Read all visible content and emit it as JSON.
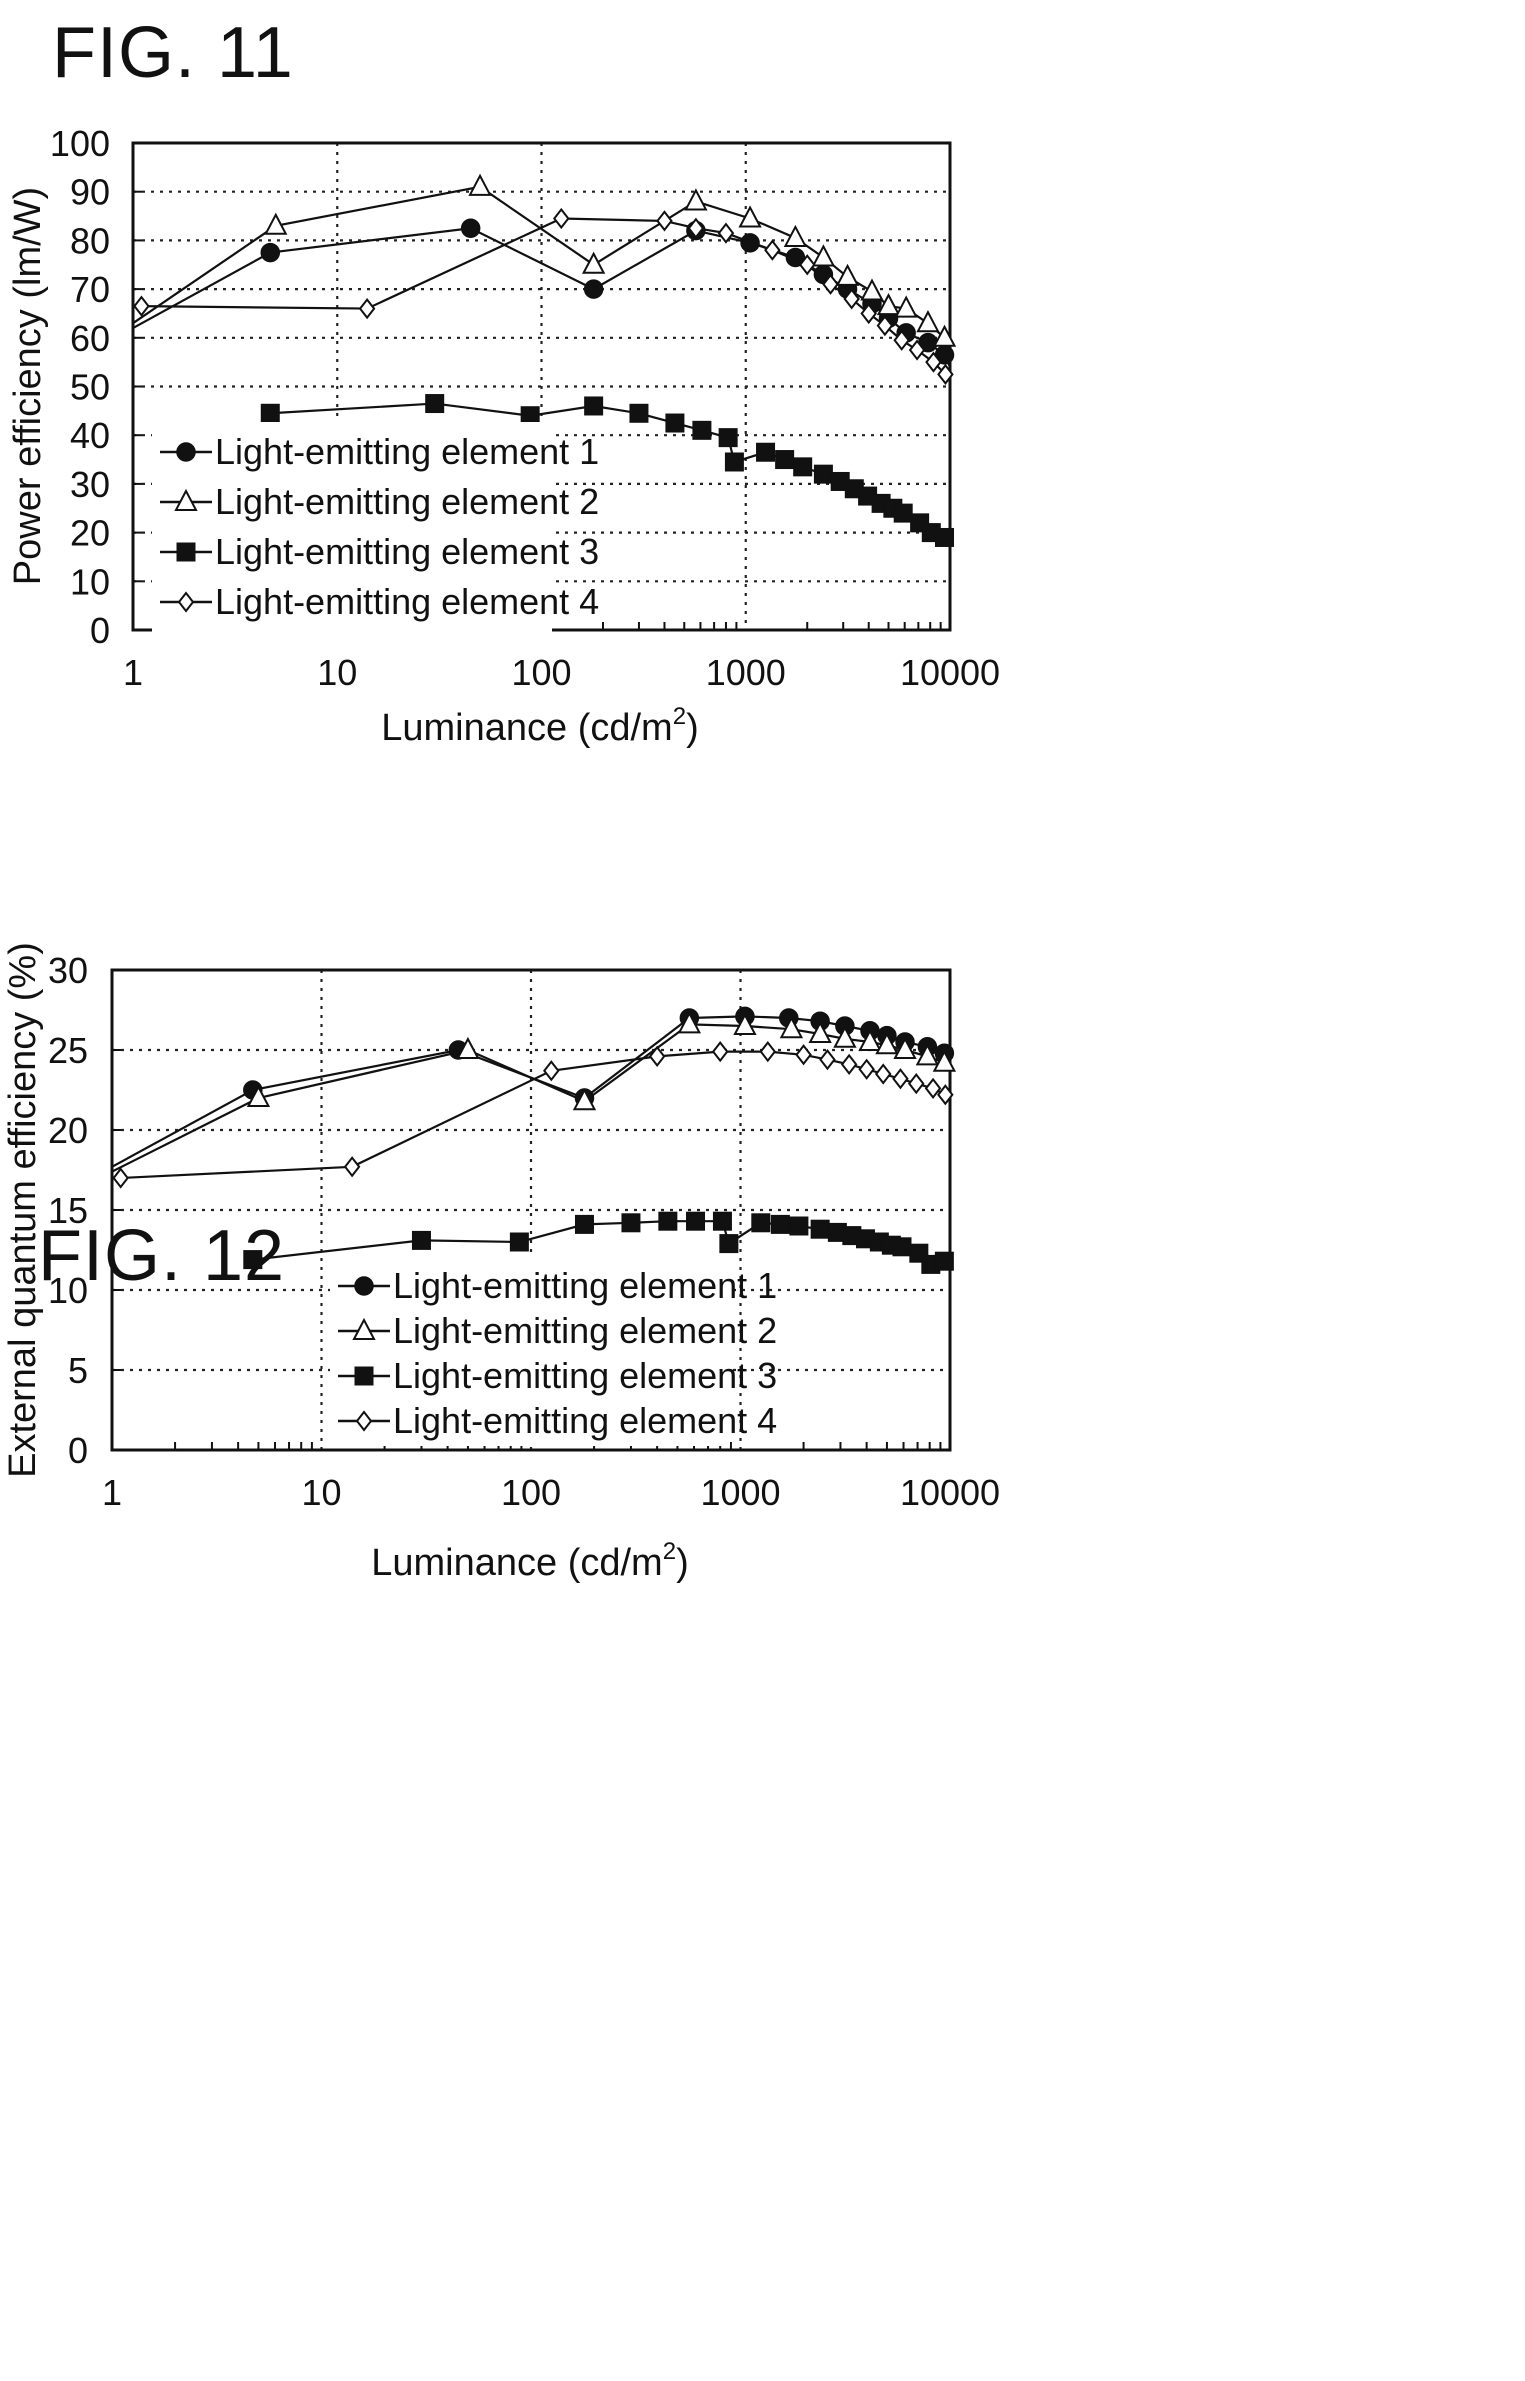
{
  "figures": [
    {
      "id": "fig11",
      "title": "FIG. 11",
      "chart_data": {
        "type": "line",
        "x_scale": "log",
        "xlim": [
          1,
          10000
        ],
        "ylim": [
          0,
          100
        ],
        "x_ticks": [
          1,
          10,
          100,
          1000,
          10000
        ],
        "x_tick_labels": [
          "1",
          "10",
          "100",
          "1000",
          "10000"
        ],
        "y_ticks": [
          0,
          10,
          20,
          30,
          40,
          50,
          60,
          70,
          80,
          90,
          100
        ],
        "y_tick_labels": [
          "0",
          "10",
          "20",
          "30",
          "40",
          "50",
          "60",
          "70",
          "80",
          "90",
          "100"
        ],
        "xlabel": "Luminance (cd/m",
        "xlabel_sup": "2",
        "xlabel_end": ")",
        "ylabel": "Power efficiency (lm/W)",
        "grid": true,
        "legend_position": "bottom-left",
        "series": [
          {
            "name": "Light-emitting element 1",
            "marker": "circle",
            "points": [
              [
                1,
                62
              ],
              [
                4.7,
                77.5
              ],
              [
                45,
                82.5
              ],
              [
                180,
                70
              ],
              [
                570,
                82
              ],
              [
                1050,
                79.5
              ],
              [
                1750,
                76.5
              ],
              [
                2400,
                73
              ],
              [
                3150,
                70
              ],
              [
                4150,
                67
              ],
              [
                5000,
                64
              ],
              [
                6100,
                61
              ],
              [
                7800,
                59
              ],
              [
                9400,
                56.5
              ],
              [
                10000,
                54
              ]
            ]
          },
          {
            "name": "Light-emitting element 2",
            "marker": "triangle",
            "points": [
              [
                1,
                63
              ],
              [
                5,
                83
              ],
              [
                50,
                91
              ],
              [
                180,
                75
              ],
              [
                570,
                88
              ],
              [
                1050,
                84.5
              ],
              [
                1750,
                80.5
              ],
              [
                2400,
                76.5
              ],
              [
                3150,
                72.5
              ],
              [
                4150,
                69.5
              ],
              [
                5000,
                66.5
              ],
              [
                6100,
                66
              ],
              [
                7800,
                63
              ],
              [
                9400,
                60
              ],
              [
                10000,
                55.5
              ]
            ]
          },
          {
            "name": "Light-emitting element 3",
            "marker": "square",
            "points": [
              [
                4.7,
                44.5
              ],
              [
                30,
                46.5
              ],
              [
                88,
                44
              ],
              [
                180,
                46
              ],
              [
                300,
                44.5
              ],
              [
                450,
                42.5
              ],
              [
                610,
                41
              ],
              [
                820,
                39.5
              ],
              [
                880,
                34.5
              ],
              [
                1250,
                36.5
              ],
              [
                1550,
                35
              ],
              [
                1900,
                33.5
              ],
              [
                2400,
                32
              ],
              [
                2900,
                30.5
              ],
              [
                3400,
                29
              ],
              [
                3950,
                27.5
              ],
              [
                4600,
                26
              ],
              [
                5250,
                25
              ],
              [
                5900,
                24
              ],
              [
                7100,
                22
              ],
              [
                8100,
                20
              ],
              [
                9400,
                19
              ],
              [
                10000,
                18
              ]
            ]
          },
          {
            "name": "Light-emitting element 4",
            "marker": "diamond",
            "points": [
              [
                1.1,
                66.5
              ],
              [
                14,
                66
              ],
              [
                125,
                84.5
              ],
              [
                400,
                84
              ],
              [
                570,
                82.5
              ],
              [
                800,
                81.5
              ],
              [
                1350,
                78
              ],
              [
                2000,
                75
              ],
              [
                2600,
                71
              ],
              [
                3300,
                68
              ],
              [
                4000,
                65
              ],
              [
                4800,
                62.5
              ],
              [
                5800,
                59.5
              ],
              [
                6900,
                57.5
              ],
              [
                8300,
                55
              ],
              [
                9500,
                52.5
              ],
              [
                10000,
                52
              ]
            ]
          }
        ]
      }
    },
    {
      "id": "fig12",
      "title": "FIG. 12",
      "chart_data": {
        "type": "line",
        "x_scale": "log",
        "xlim": [
          1,
          10000
        ],
        "ylim": [
          0,
          30
        ],
        "x_ticks": [
          1,
          10,
          100,
          1000,
          10000
        ],
        "x_tick_labels": [
          "1",
          "10",
          "100",
          "1000",
          "10000"
        ],
        "y_ticks": [
          0,
          5,
          10,
          15,
          20,
          25,
          30
        ],
        "y_tick_labels": [
          "0",
          "5",
          "10",
          "15",
          "20",
          "25",
          "30"
        ],
        "xlabel": "Luminance (cd/m",
        "xlabel_sup": "2",
        "xlabel_end": ")",
        "ylabel": "External quantum efficiency (%)",
        "grid": true,
        "legend_position": "bottom-center",
        "series": [
          {
            "name": "Light-emitting element 1",
            "marker": "circle",
            "points": [
              [
                1,
                17.7
              ],
              [
                4.7,
                22.5
              ],
              [
                45,
                25
              ],
              [
                180,
                22
              ],
              [
                570,
                27
              ],
              [
                1050,
                27.1
              ],
              [
                1700,
                27
              ],
              [
                2400,
                26.8
              ],
              [
                3150,
                26.5
              ],
              [
                4150,
                26.2
              ],
              [
                5000,
                25.9
              ],
              [
                6100,
                25.5
              ],
              [
                7800,
                25.2
              ],
              [
                9400,
                24.8
              ],
              [
                10000,
                24.5
              ]
            ]
          },
          {
            "name": "Light-emitting element 2",
            "marker": "triangle",
            "points": [
              [
                1,
                17.4
              ],
              [
                5,
                22
              ],
              [
                50,
                25
              ],
              [
                180,
                21.8
              ],
              [
                570,
                26.6
              ],
              [
                1050,
                26.5
              ],
              [
                1750,
                26.3
              ],
              [
                2400,
                26
              ],
              [
                3150,
                25.7
              ],
              [
                4150,
                25.5
              ],
              [
                5000,
                25.3
              ],
              [
                6100,
                25
              ],
              [
                7800,
                24.6
              ],
              [
                9400,
                24.2
              ],
              [
                10000,
                24
              ]
            ]
          },
          {
            "name": "Light-emitting element 3",
            "marker": "square",
            "points": [
              [
                4.7,
                11.9
              ],
              [
                30,
                13.1
              ],
              [
                88,
                13
              ],
              [
                180,
                14.1
              ],
              [
                300,
                14.2
              ],
              [
                450,
                14.3
              ],
              [
                610,
                14.3
              ],
              [
                820,
                14.3
              ],
              [
                880,
                12.9
              ],
              [
                1250,
                14.2
              ],
              [
                1550,
                14.1
              ],
              [
                1900,
                14
              ],
              [
                2400,
                13.8
              ],
              [
                2900,
                13.6
              ],
              [
                3400,
                13.4
              ],
              [
                3950,
                13.2
              ],
              [
                4600,
                13
              ],
              [
                5250,
                12.8
              ],
              [
                5900,
                12.7
              ],
              [
                7100,
                12.3
              ],
              [
                8100,
                11.6
              ],
              [
                9400,
                11.8
              ],
              [
                10000,
                11.6
              ]
            ]
          },
          {
            "name": "Light-emitting element 4",
            "marker": "diamond",
            "points": [
              [
                1.1,
                17
              ],
              [
                14,
                17.7
              ],
              [
                125,
                23.7
              ],
              [
                400,
                24.6
              ],
              [
                800,
                24.9
              ],
              [
                1350,
                24.9
              ],
              [
                2000,
                24.7
              ],
              [
                2600,
                24.4
              ],
              [
                3300,
                24.1
              ],
              [
                4000,
                23.8
              ],
              [
                4800,
                23.5
              ],
              [
                5800,
                23.2
              ],
              [
                6900,
                22.9
              ],
              [
                8300,
                22.6
              ],
              [
                9500,
                22.2
              ],
              [
                10000,
                22
              ]
            ]
          }
        ]
      }
    }
  ]
}
